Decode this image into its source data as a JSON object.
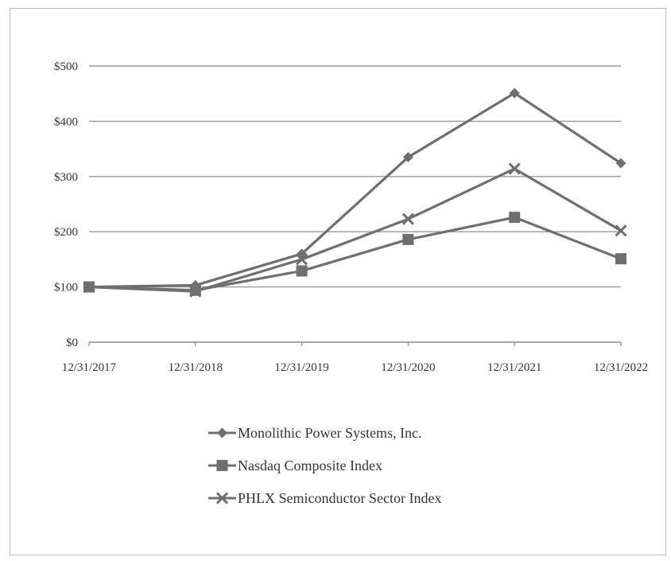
{
  "chart_data": {
    "type": "line",
    "title": "",
    "xlabel": "",
    "ylabel": "",
    "categories": [
      "12/31/2017",
      "12/31/2018",
      "12/31/2019",
      "12/31/2020",
      "12/31/2021",
      "12/31/2022"
    ],
    "ylim": [
      0,
      500
    ],
    "yticks": [
      0,
      100,
      200,
      300,
      400,
      500
    ],
    "ytick_labels": [
      "$0",
      "$100",
      "$200",
      "$300",
      "$400",
      "$500"
    ],
    "grid": true,
    "legend_position": "bottom",
    "series": [
      {
        "name": "Monolithic Power Systems, Inc.",
        "values": [
          100,
          103,
          160,
          335,
          451,
          324
        ],
        "marker": "diamond",
        "color": "#6f6f6f"
      },
      {
        "name": "Nasdaq Composite Index",
        "values": [
          100,
          94,
          129,
          186,
          226,
          151
        ],
        "marker": "square",
        "color": "#6f6f6f"
      },
      {
        "name": "PHLX Semiconductor Sector Index",
        "values": [
          100,
          92,
          150,
          223,
          314,
          202
        ],
        "marker": "x",
        "color": "#6f6f6f"
      }
    ]
  }
}
